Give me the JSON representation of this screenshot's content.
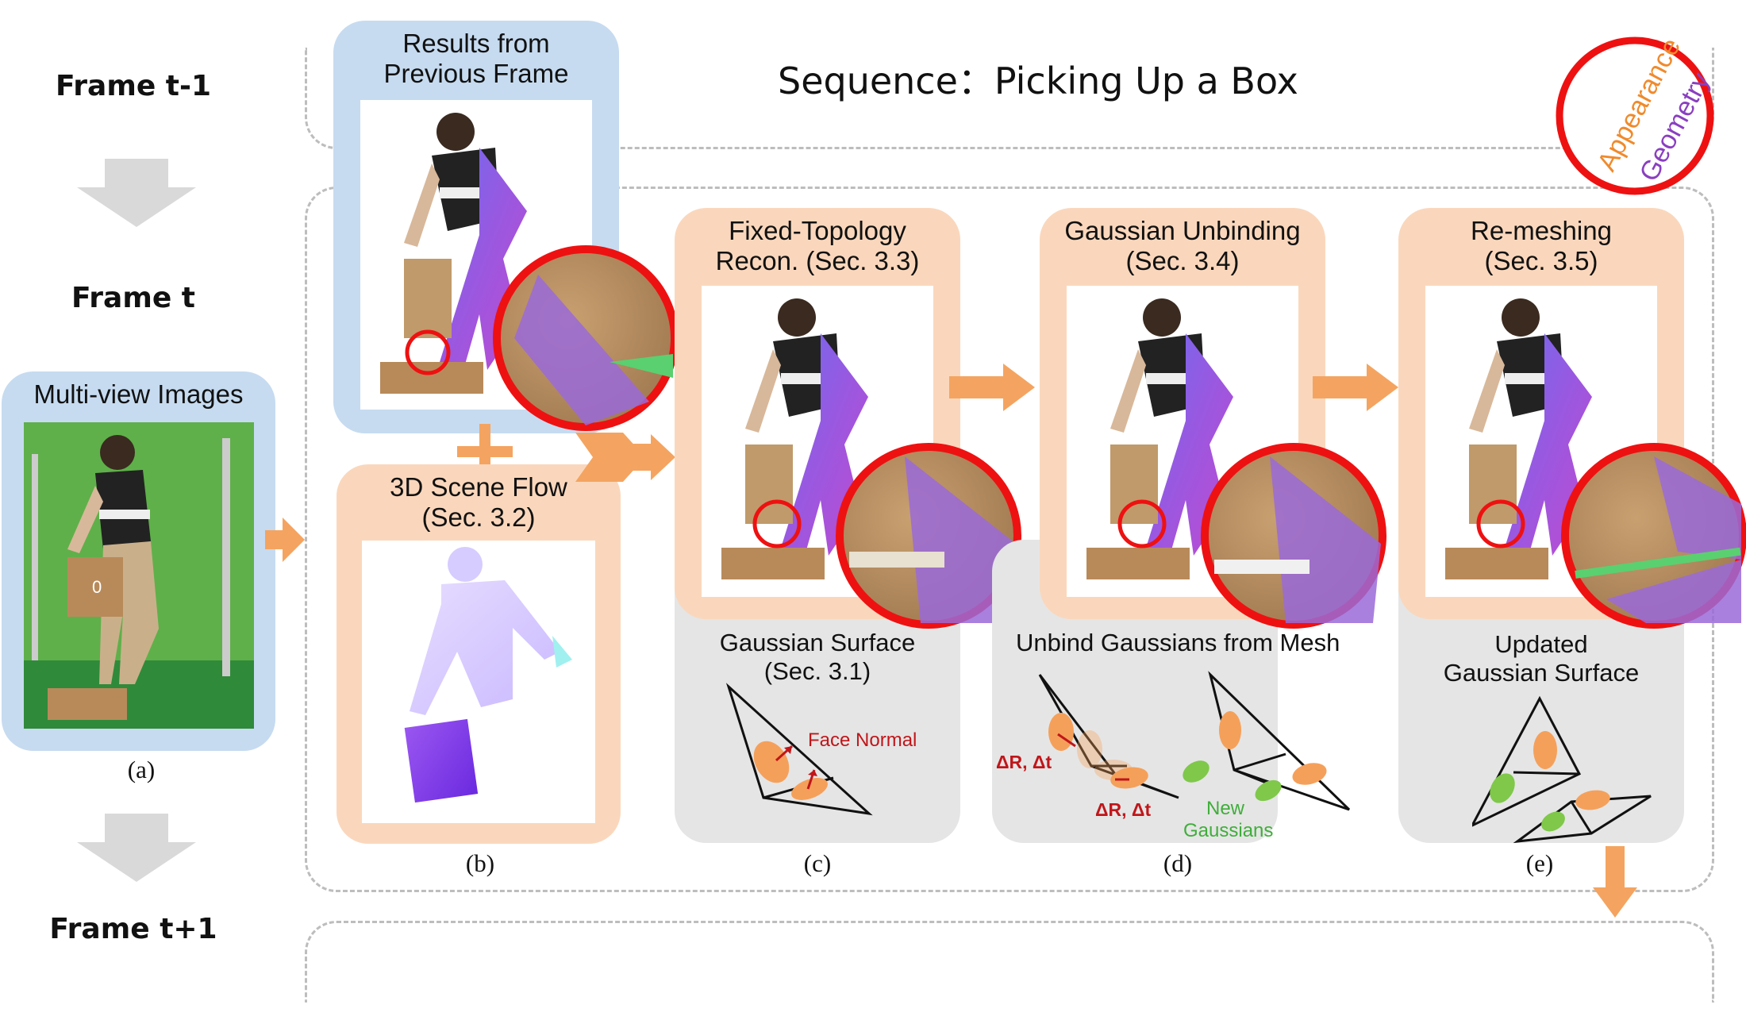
{
  "frames": {
    "prev": "Frame t-1",
    "cur": "Frame t",
    "next": "Frame t+1"
  },
  "sequence_title": "Sequence：Picking Up a Box",
  "legend": {
    "appearance": "Appearance",
    "geometry": "Geometry"
  },
  "panels": {
    "multiview": {
      "title": "Multi-view Images",
      "caption": "(a)"
    },
    "previous": {
      "title_line1": "Results from",
      "title_line2": "Previous Frame"
    },
    "sceneflow": {
      "title_line1": "3D Scene Flow",
      "title_line2": "(Sec. 3.2)",
      "caption": "(b)"
    },
    "fixed": {
      "title_line1": "Fixed-Topology",
      "title_line2": "Recon. (Sec. 3.3)",
      "caption": "(c)",
      "sub_line1": "Gaussian Surface",
      "sub_line2": "(Sec. 3.1)",
      "note": "Face Normal"
    },
    "unbind": {
      "title_line1": "Gaussian Unbinding",
      "title_line2": "(Sec. 3.4)",
      "caption": "(d)",
      "sub": "Unbind Gaussians from Mesh",
      "delta1": "ΔR, Δt",
      "delta2": "ΔR, Δt",
      "new_line1": "New",
      "new_line2": "Gaussians"
    },
    "remesh": {
      "title_line1": "Re-meshing",
      "title_line2": "(Sec. 3.5)",
      "caption": "(e)",
      "sub_line1": "Updated",
      "sub_line2": "Gaussian Surface"
    }
  },
  "colors": {
    "blue_panel": "#c6dbf0",
    "peach_panel": "#fad7bc",
    "grey_panel": "#e5e5e5",
    "arrow_orange": "#f4a460",
    "arrow_grey": "#d9d9d9",
    "zoom_red": "#ee1111",
    "appearance": "#f08a2c",
    "geometry": "#8a3fc0",
    "gaussian_orange": "#f5a05a",
    "gaussian_green": "#7fc84a",
    "annotation_red": "#c0161a"
  }
}
